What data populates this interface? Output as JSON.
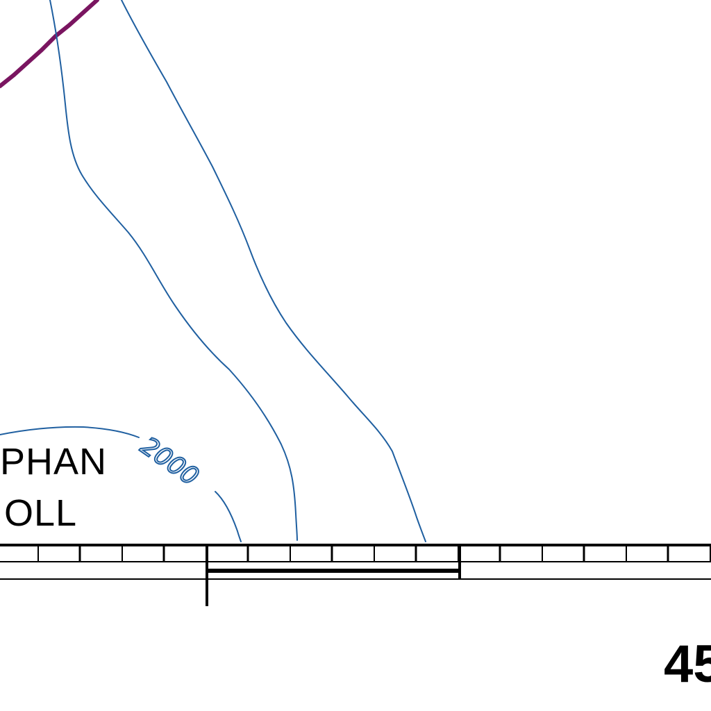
{
  "map": {
    "contour_label": "2000",
    "place_label_line1": "PHAN",
    "place_label_line2": "OLL",
    "grid_label": "45",
    "colors": {
      "contour": "#1f5fa0",
      "route": "#7a1560",
      "border": "#000000",
      "background": "#ffffff"
    }
  }
}
